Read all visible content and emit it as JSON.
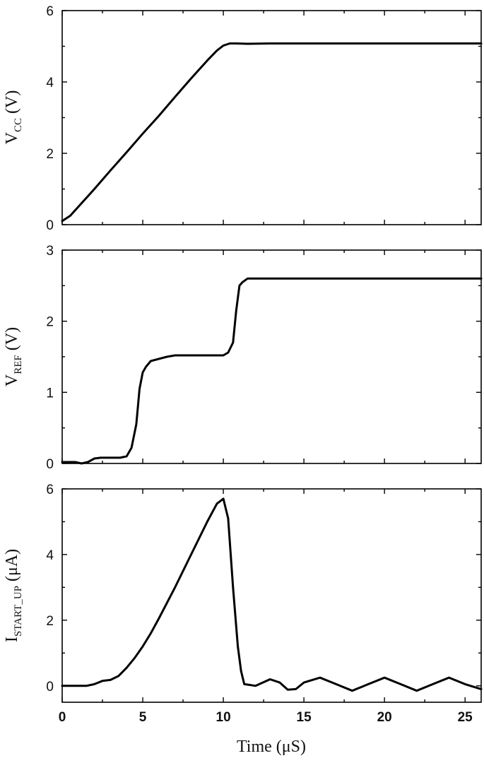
{
  "chart_data": [
    {
      "type": "line",
      "ylabel_main": "V",
      "ylabel_sub": "CC",
      "ylabel_unit": " (V)",
      "ylim": [
        0,
        6
      ],
      "yticks": [
        0,
        2,
        4,
        6
      ],
      "xlim": [
        0,
        26
      ],
      "x": [
        0,
        0.5,
        1,
        2,
        3,
        4,
        5,
        6,
        7,
        8,
        9,
        9.6,
        10,
        10.4,
        10.8,
        11.5,
        13,
        16,
        20,
        24,
        26
      ],
      "y": [
        0.1,
        0.25,
        0.5,
        1.0,
        1.52,
        2.03,
        2.55,
        3.05,
        3.58,
        4.1,
        4.6,
        4.88,
        5.02,
        5.08,
        5.08,
        5.07,
        5.08,
        5.08,
        5.08,
        5.08,
        5.08
      ]
    },
    {
      "type": "line",
      "ylabel_main": "V",
      "ylabel_sub": "REF",
      "ylabel_unit": " (V)",
      "ylim": [
        0,
        3
      ],
      "yticks": [
        0,
        1,
        2,
        3
      ],
      "xlim": [
        0,
        26
      ],
      "x": [
        0,
        0.8,
        1.2,
        1.6,
        2.0,
        2.4,
        3.0,
        3.6,
        4.0,
        4.3,
        4.6,
        4.8,
        5.0,
        5.2,
        5.5,
        6.0,
        6.5,
        7.0,
        8.0,
        9.0,
        10.0,
        10.3,
        10.6,
        10.8,
        11.0,
        11.2,
        11.5,
        12,
        14,
        18,
        22,
        26
      ],
      "y": [
        0.02,
        0.02,
        0.0,
        0.02,
        0.07,
        0.08,
        0.08,
        0.08,
        0.1,
        0.22,
        0.55,
        1.05,
        1.28,
        1.36,
        1.44,
        1.47,
        1.5,
        1.52,
        1.52,
        1.52,
        1.52,
        1.56,
        1.7,
        2.15,
        2.5,
        2.55,
        2.6,
        2.6,
        2.6,
        2.6,
        2.6,
        2.6
      ]
    },
    {
      "type": "line",
      "ylabel_main": "I",
      "ylabel_sub": "START_UP",
      "ylabel_unit": " (μA)",
      "ylim": [
        -0.5,
        6
      ],
      "yticks": [
        0,
        2,
        4,
        6
      ],
      "xlim": [
        0,
        26
      ],
      "xticks": [
        0,
        5,
        10,
        15,
        20,
        25
      ],
      "x": [
        0,
        1,
        1.5,
        2,
        2.5,
        3,
        3.5,
        4,
        4.5,
        5,
        5.5,
        6,
        7,
        8,
        9,
        9.6,
        10,
        10.3,
        10.6,
        10.9,
        11.1,
        11.3,
        11.6,
        12,
        12.9,
        13.5,
        14,
        14.5,
        15,
        16,
        17,
        18,
        19,
        20,
        21,
        22,
        23,
        24,
        25,
        26
      ],
      "y": [
        0,
        0,
        0,
        0.05,
        0.15,
        0.18,
        0.3,
        0.55,
        0.85,
        1.2,
        1.6,
        2.05,
        3.0,
        4.0,
        5.0,
        5.55,
        5.7,
        5.1,
        3.0,
        1.2,
        0.45,
        0.05,
        0.03,
        0.0,
        0.2,
        0.1,
        -0.12,
        -0.1,
        0.1,
        0.25,
        0.05,
        -0.15,
        0.05,
        0.25,
        0.05,
        -0.15,
        0.05,
        0.25,
        0.05,
        -0.1
      ]
    }
  ],
  "x_axis": {
    "label": "Time (μS)",
    "ticks": [
      0,
      5,
      10,
      15,
      20,
      25
    ]
  }
}
